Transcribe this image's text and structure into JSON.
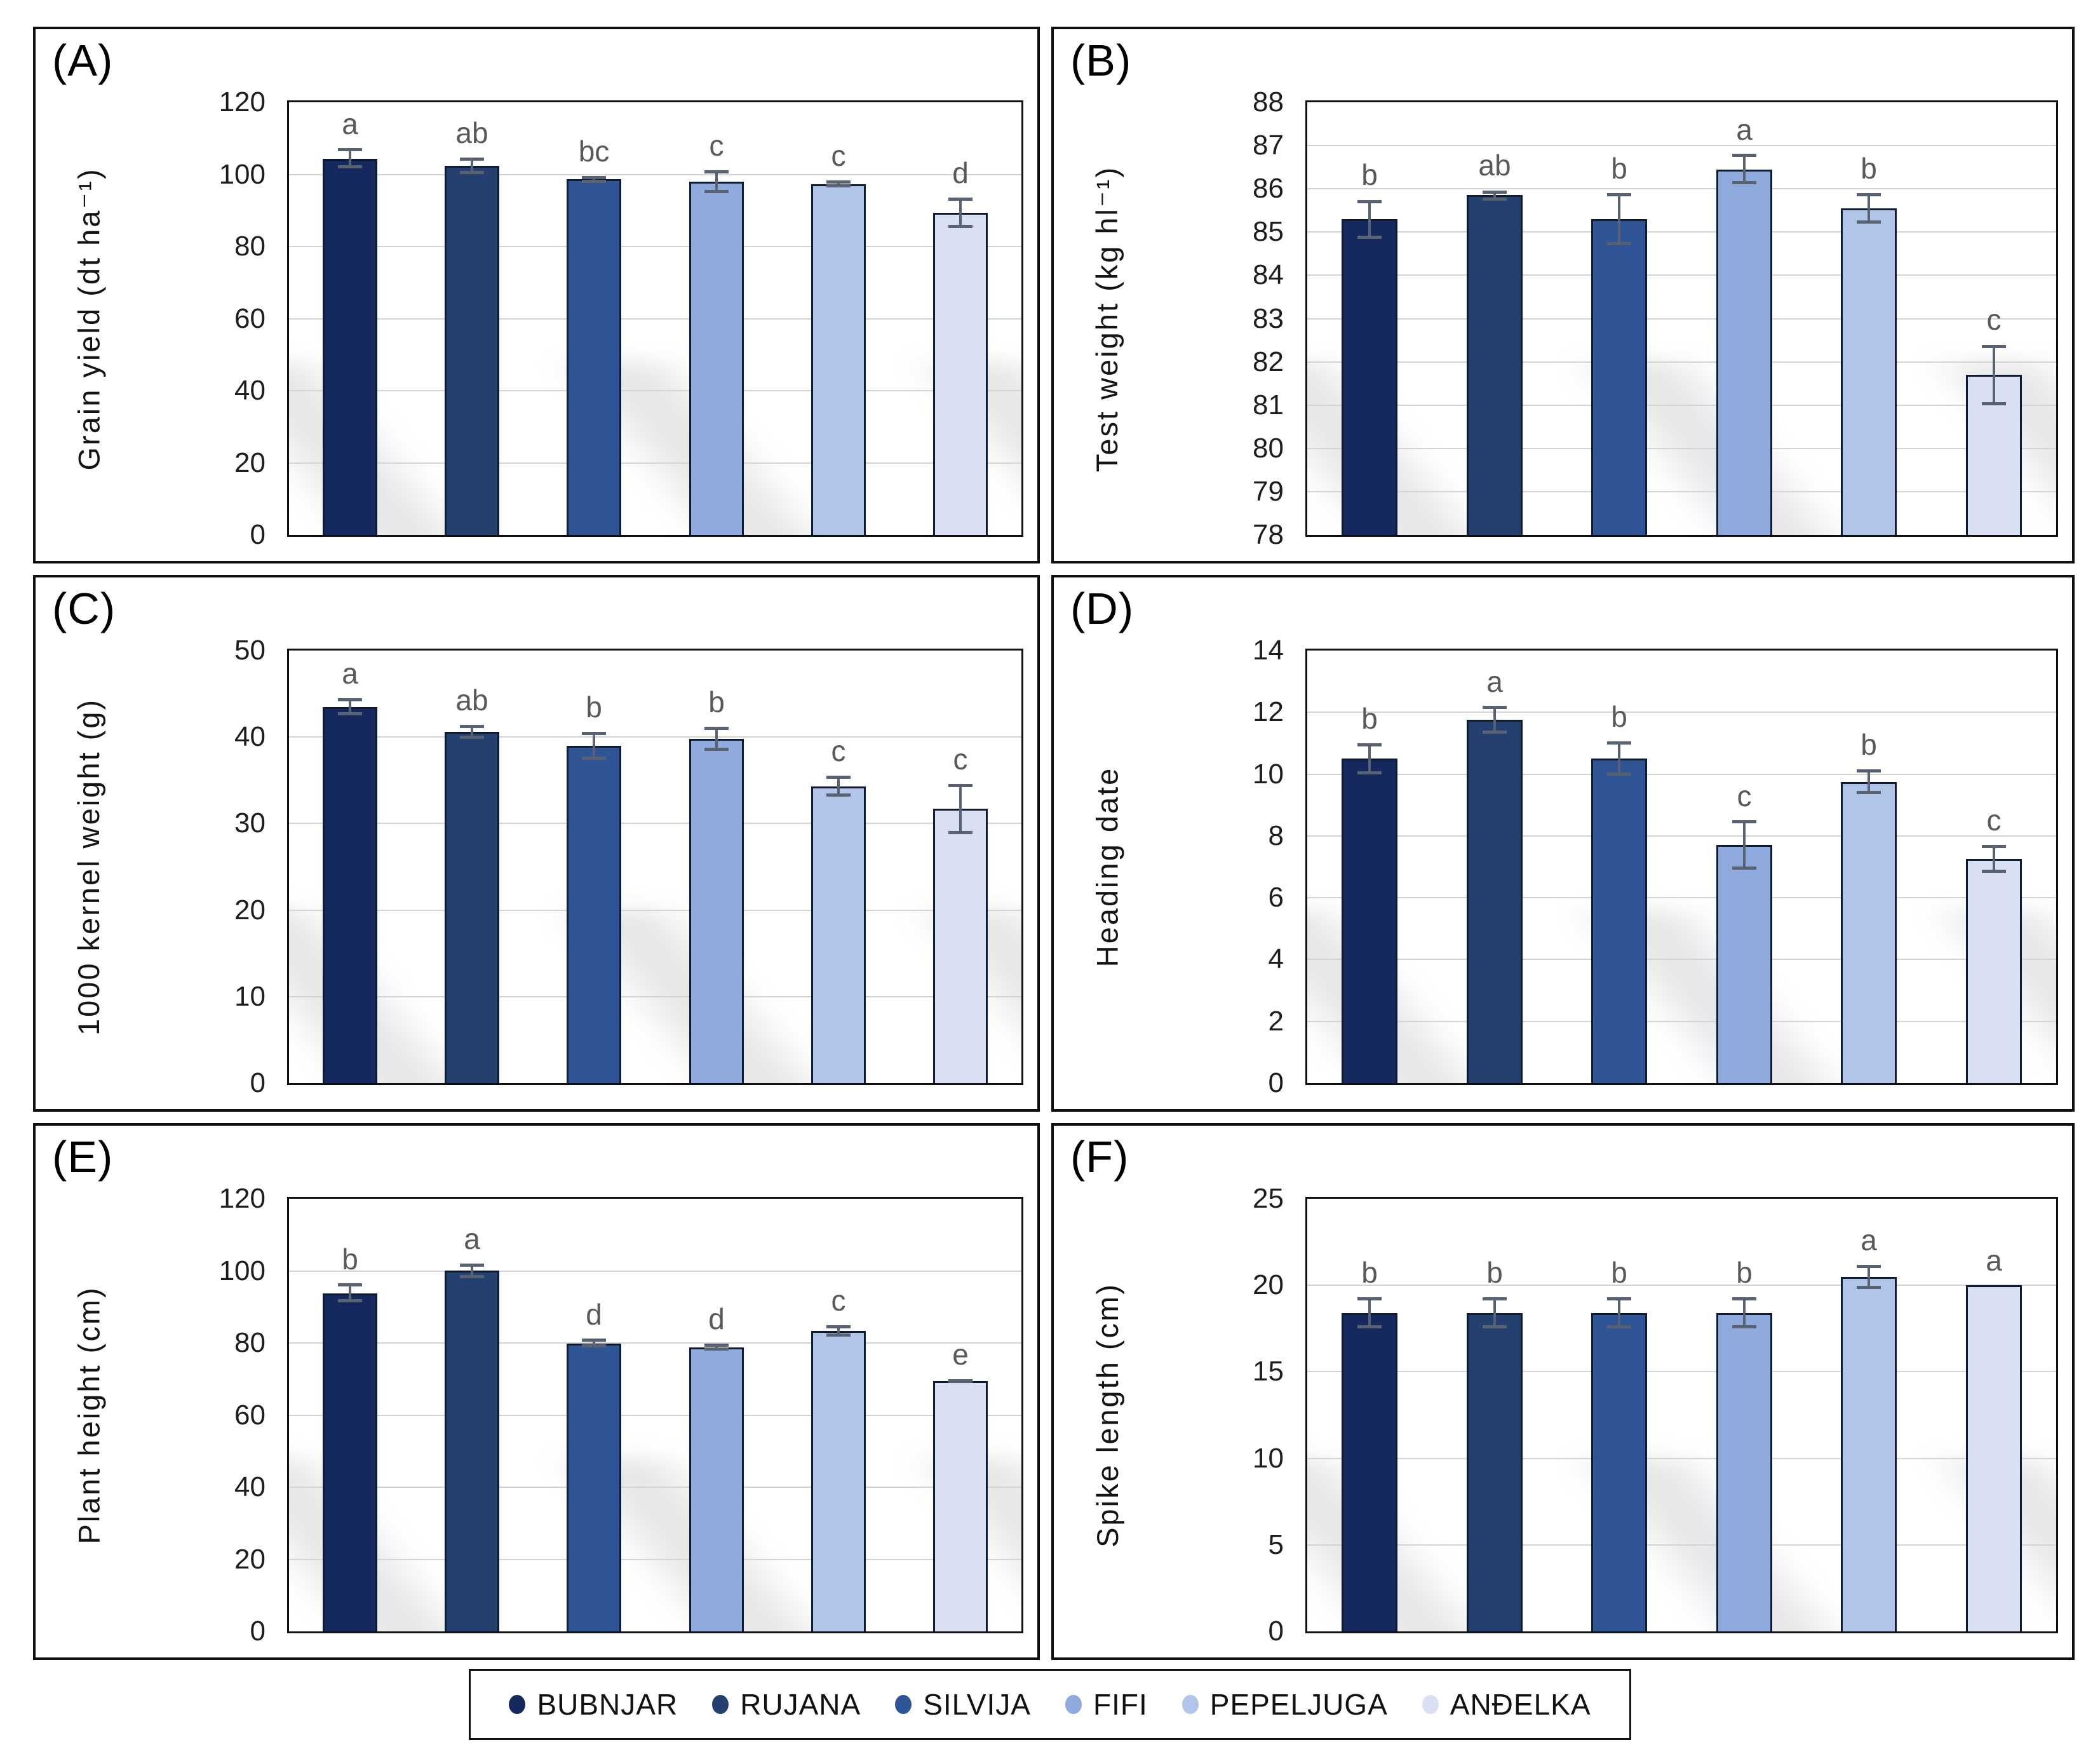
{
  "figure": {
    "bar_border_color": "#0d1b33",
    "error_bar_color": "#596273",
    "letter_color": "#595959",
    "gridline_color": "#d4d4d4",
    "cultivar_colors": [
      "#15295e",
      "#24406f",
      "#2f5597",
      "#8faadc",
      "#b1c5e8",
      "#d8e0f2"
    ]
  },
  "legend": {
    "items": [
      {
        "label": "BUBNJAR",
        "color": "#15295e"
      },
      {
        "label": "RUJANA",
        "color": "#24406f"
      },
      {
        "label": "SILVIJA",
        "color": "#2f5597"
      },
      {
        "label": "FIFI",
        "color": "#8faadc"
      },
      {
        "label": "PEPELJUGA",
        "color": "#b1c5e8"
      },
      {
        "label": "ANĐELKA",
        "color": "#d8e0f2"
      }
    ]
  },
  "chart_data": [
    {
      "type": "bar",
      "panel": "(A)",
      "ylabel": "Grain yield (dt ha⁻¹)",
      "ylim": [
        0,
        120
      ],
      "yticks": [
        0,
        20,
        40,
        60,
        80,
        100,
        120
      ],
      "grid": true,
      "categories": [
        "BUBNJAR",
        "RUJANA",
        "SILVIJA",
        "FIFI",
        "PEPELJUGA",
        "ANĐELKA"
      ],
      "values": [
        104.4,
        102.4,
        98.6,
        98.0,
        97.3,
        89.3
      ],
      "errors": [
        2.8,
        2.3,
        1.0,
        3.2,
        1.0,
        4.2
      ],
      "letters": [
        "a",
        "ab",
        "bc",
        "c",
        "c",
        "d"
      ]
    },
    {
      "type": "bar",
      "panel": "(B)",
      "ylabel": "Test weight (kg hl⁻¹)",
      "ylim": [
        78,
        88
      ],
      "yticks": [
        78,
        79,
        80,
        81,
        82,
        83,
        84,
        85,
        86,
        87,
        88
      ],
      "grid": true,
      "categories": [
        "BUBNJAR",
        "RUJANA",
        "SILVIJA",
        "FIFI",
        "PEPELJUGA",
        "ANĐELKA"
      ],
      "values": [
        85.3,
        85.85,
        85.3,
        86.45,
        85.55,
        81.7
      ],
      "errors": [
        0.45,
        0.12,
        0.6,
        0.35,
        0.35,
        0.7
      ],
      "letters": [
        "b",
        "ab",
        "b",
        "a",
        "b",
        "c"
      ]
    },
    {
      "type": "bar",
      "panel": "(C)",
      "ylabel": "1000 kernel weight (g)",
      "ylim": [
        0,
        50
      ],
      "yticks": [
        0,
        10,
        20,
        30,
        40,
        50
      ],
      "grid": true,
      "categories": [
        "BUBNJAR",
        "RUJANA",
        "SILVIJA",
        "FIFI",
        "PEPELJUGA",
        "ANĐELKA"
      ],
      "values": [
        43.5,
        40.6,
        39.0,
        39.8,
        34.3,
        31.7
      ],
      "errors": [
        1.0,
        0.8,
        1.6,
        1.4,
        1.2,
        2.9
      ],
      "letters": [
        "a",
        "ab",
        "b",
        "b",
        "c",
        "c"
      ]
    },
    {
      "type": "bar",
      "panel": "(D)",
      "ylabel": "Heading date",
      "ylim": [
        0,
        14
      ],
      "yticks": [
        0,
        2,
        4,
        6,
        8,
        10,
        12,
        14
      ],
      "grid": true,
      "categories": [
        "BUBNJAR",
        "RUJANA",
        "SILVIJA",
        "FIFI",
        "PEPELJUGA",
        "ANĐELKA"
      ],
      "values": [
        10.5,
        11.75,
        10.5,
        7.7,
        9.75,
        7.25
      ],
      "errors": [
        0.5,
        0.45,
        0.55,
        0.8,
        0.4,
        0.45
      ],
      "letters": [
        "b",
        "a",
        "b",
        "c",
        "b",
        "c"
      ]
    },
    {
      "type": "bar",
      "panel": "(E)",
      "ylabel": "Plant height (cm)",
      "ylim": [
        0,
        120
      ],
      "yticks": [
        0,
        20,
        40,
        60,
        80,
        100,
        120
      ],
      "grid": true,
      "categories": [
        "BUBNJAR",
        "RUJANA",
        "SILVIJA",
        "FIFI",
        "PEPELJUGA",
        "ANĐELKA"
      ],
      "values": [
        93.8,
        100.0,
        79.9,
        78.8,
        83.3,
        69.4
      ],
      "errors": [
        2.6,
        2.0,
        1.2,
        1.0,
        1.6,
        0.5
      ],
      "letters": [
        "b",
        "a",
        "d",
        "d",
        "c",
        "e"
      ]
    },
    {
      "type": "bar",
      "panel": "(F)",
      "ylabel": "Spike length (cm)",
      "ylim": [
        0,
        25
      ],
      "yticks": [
        0,
        5,
        10,
        15,
        20,
        25
      ],
      "grid": true,
      "categories": [
        "BUBNJAR",
        "RUJANA",
        "SILVIJA",
        "FIFI",
        "PEPELJUGA",
        "ANĐELKA"
      ],
      "values": [
        18.4,
        18.4,
        18.4,
        18.4,
        20.5,
        20.0
      ],
      "errors": [
        0.9,
        0.9,
        0.9,
        0.9,
        0.7,
        0
      ],
      "letters": [
        "b",
        "b",
        "b",
        "b",
        "a",
        "a"
      ]
    }
  ]
}
